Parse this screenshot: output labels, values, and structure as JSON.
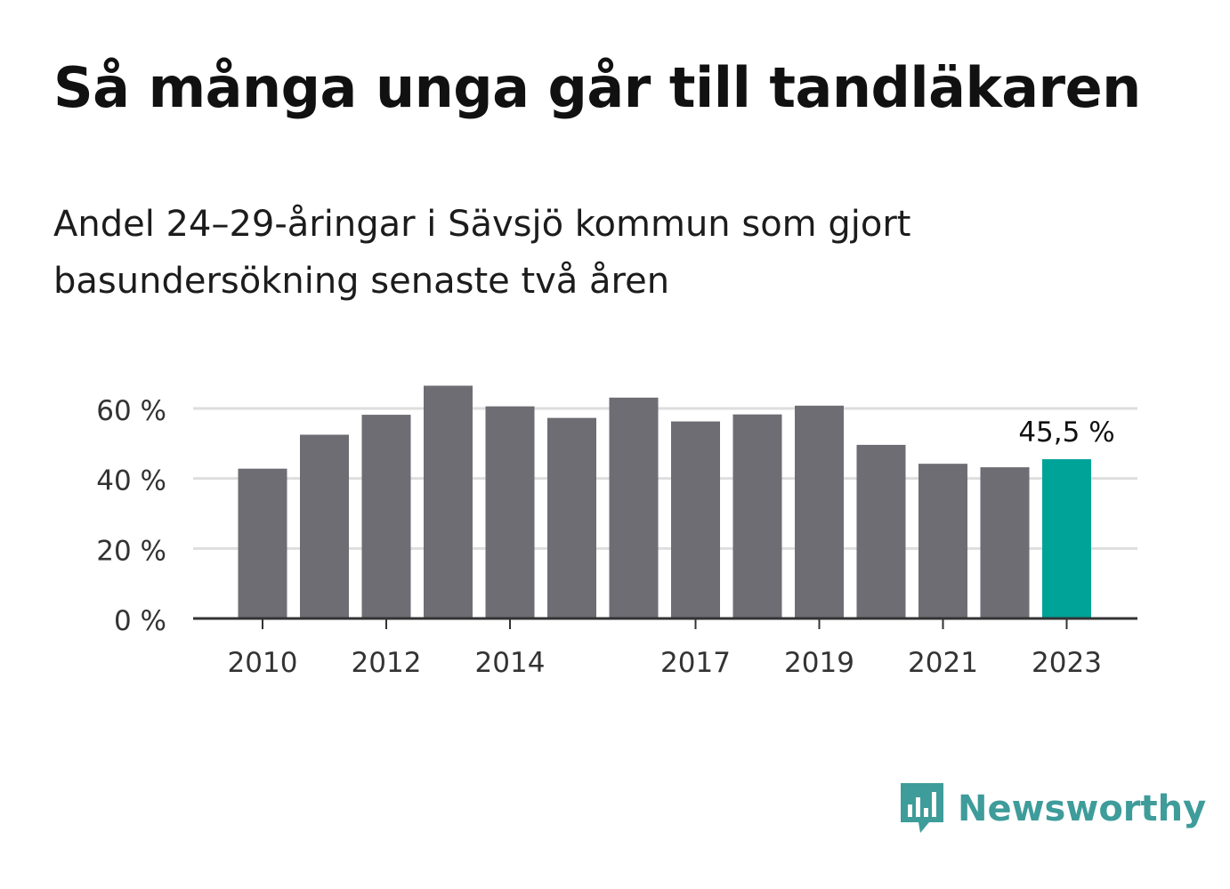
{
  "title": "Så många unga går till tandläkaren",
  "subtitle_lines": [
    "Andel 24–29-åringar i Sävsjö kommun som gjort",
    "basundersökning senaste två åren"
  ],
  "brand": {
    "name": "Newsworthy",
    "icon": "newsworthy-logo-icon",
    "color": "#3e9c9a"
  },
  "colors": {
    "bar": "#6e6d73",
    "highlight": "#00a398",
    "grid": "#dedede",
    "axis": "#333333"
  },
  "chart_data": {
    "type": "bar",
    "x": [
      2010,
      2011,
      2012,
      2013,
      2014,
      2015,
      2016,
      2017,
      2018,
      2019,
      2020,
      2021,
      2022,
      2023
    ],
    "values": [
      42.8,
      52.5,
      58.2,
      66.5,
      60.6,
      57.3,
      63.1,
      56.3,
      58.3,
      60.8,
      49.6,
      44.2,
      43.2,
      45.5
    ],
    "xticks": [
      "2010",
      "2012",
      "2014",
      "2017",
      "2019",
      "2021",
      "2023"
    ],
    "ylim": [
      0,
      70
    ],
    "yticks": [
      {
        "value": 0,
        "label": "0 %"
      },
      {
        "value": 20,
        "label": "20 %"
      },
      {
        "value": 40,
        "label": "40 %"
      },
      {
        "value": 60,
        "label": "60 %"
      }
    ],
    "highlight_index": 13,
    "highlight_label": "45,5 %",
    "grid": true
  }
}
